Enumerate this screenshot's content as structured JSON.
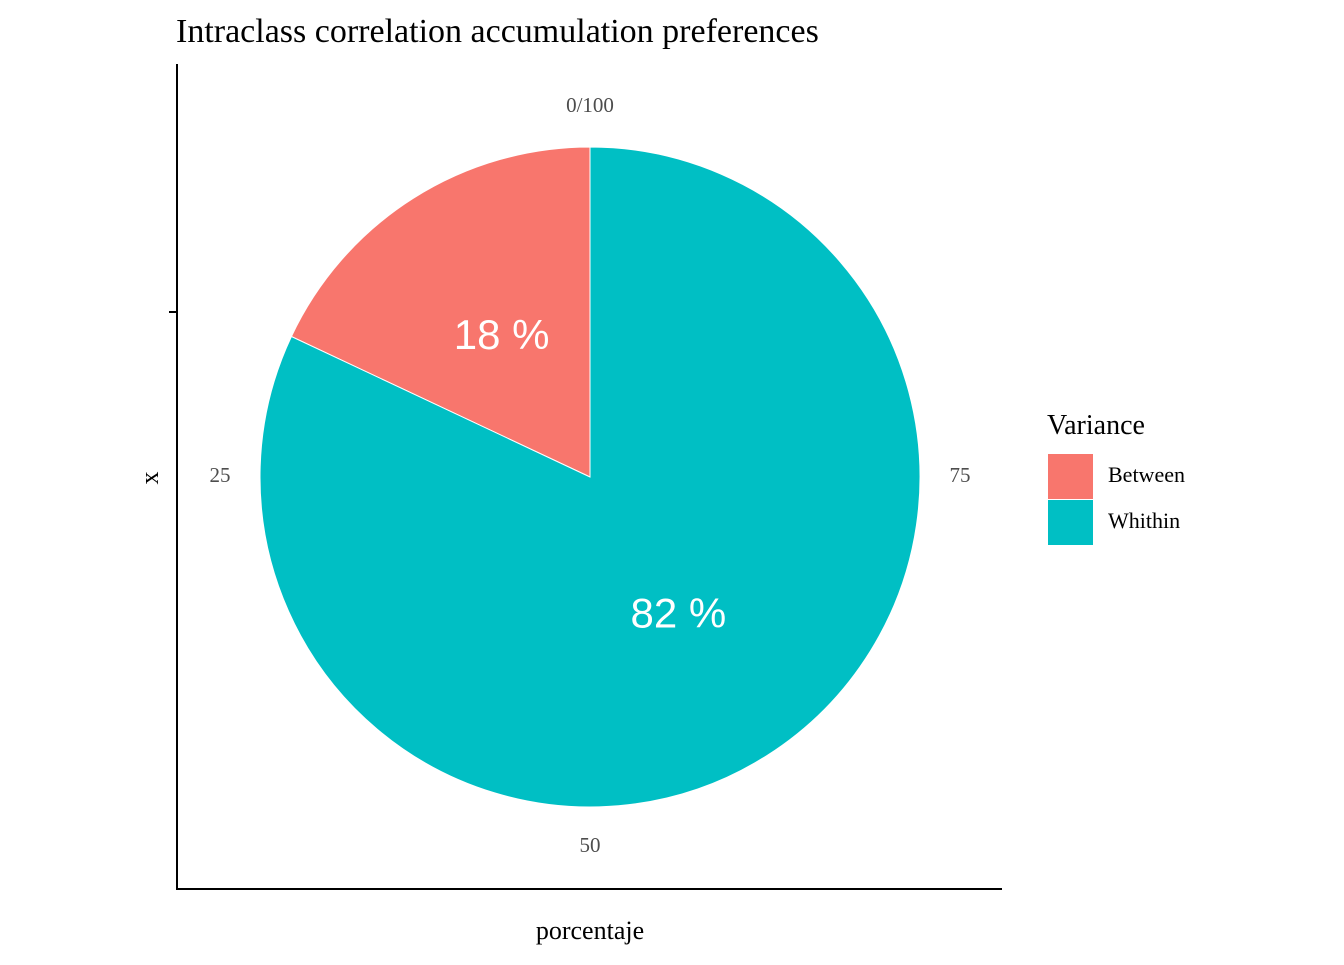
{
  "chart_data": {
    "type": "pie",
    "title": "Intraclass correlation accumulation preferences",
    "xlabel": "porcentaje",
    "ylabel": "x",
    "slices": [
      {
        "name": "Between",
        "value": 18,
        "label": "18 %",
        "color": "#F8766D"
      },
      {
        "name": "Whithin",
        "value": 82,
        "label": "82 %",
        "color": "#00BFC4"
      }
    ],
    "angular_ticks": [
      {
        "value": 0,
        "label": "0/100"
      },
      {
        "value": 25,
        "label": "25"
      },
      {
        "value": 50,
        "label": "50"
      },
      {
        "value": 75,
        "label": "75"
      }
    ],
    "angular_range": [
      0,
      100
    ],
    "direction": "counterclockwise",
    "legend": {
      "title": "Variance",
      "position": "right",
      "entries": [
        {
          "label": "Between",
          "color": "#F8766D"
        },
        {
          "label": "Whithin",
          "color": "#00BFC4"
        }
      ]
    },
    "grid": false
  }
}
